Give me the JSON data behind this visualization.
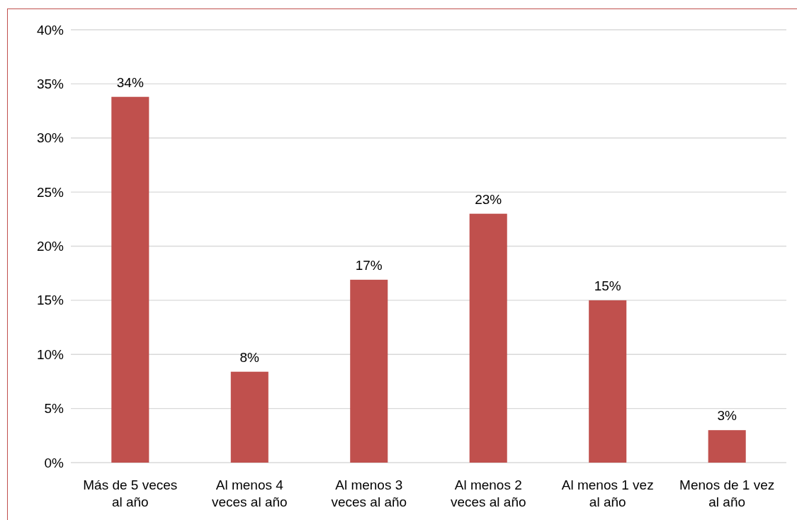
{
  "chart_data": {
    "type": "bar",
    "categories": [
      "Más de 5 veces al año",
      "Al menos 4 veces al año",
      "Al menos 3 veces al año",
      "Al menos 2 veces al año",
      "Al menos 1 vez al año",
      "Menos de 1 vez al año"
    ],
    "values": [
      33.8,
      8.4,
      16.9,
      23,
      15,
      3
    ],
    "value_labels": [
      "34%",
      "8%",
      "17%",
      "23%",
      "15%",
      "3%"
    ],
    "color": "#c0504d",
    "ylim": [
      0,
      40
    ],
    "yticks": [
      {
        "value": 0,
        "label": "0%"
      },
      {
        "value": 5,
        "label": "5%"
      },
      {
        "value": 10,
        "label": "10%"
      },
      {
        "value": 15,
        "label": "15%"
      },
      {
        "value": 20,
        "label": "20%"
      },
      {
        "value": 25,
        "label": "25%"
      },
      {
        "value": 30,
        "label": "30%"
      },
      {
        "value": 35,
        "label": "35%"
      },
      {
        "value": 40,
        "label": "40%"
      }
    ],
    "grid": "y"
  }
}
